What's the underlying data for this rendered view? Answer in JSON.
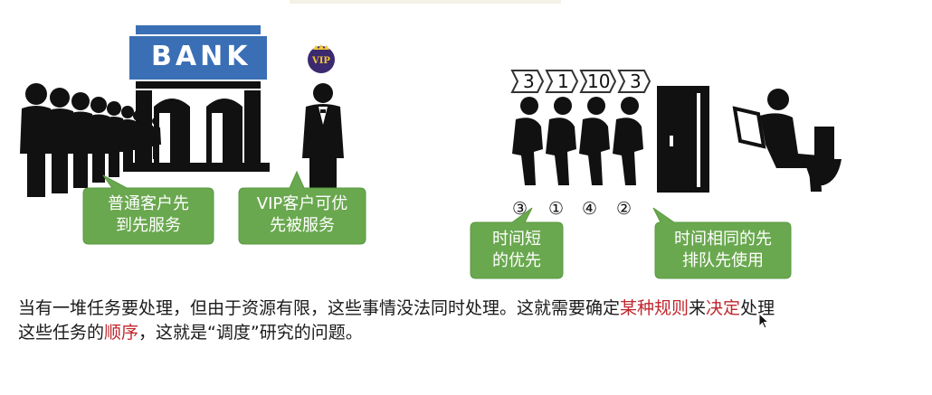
{
  "bank_illustration": {
    "bank_sign": "BANK",
    "vip_badge": "VIP",
    "callout_normal": [
      "普通客户先",
      "到先服务"
    ],
    "callout_vip": [
      "VIP客户可优",
      "先被服务"
    ]
  },
  "toilet_illustration": {
    "tickets": [
      "3",
      "1",
      "10",
      "3"
    ],
    "order_marks": [
      "③",
      "①",
      "④",
      "②"
    ],
    "callout_short": [
      "时间短",
      "的优先"
    ],
    "callout_same": [
      "时间相同的先",
      "排队先使用"
    ]
  },
  "paragraph": {
    "part1": "当有一堆任务要处理，但由于资源有限，这些事情没法同时处理。这就需要确定",
    "highlight1": "某种规则",
    "part2": "来",
    "highlight2": "决定",
    "part3": "处理",
    "part4": "这些任务的",
    "highlight3": "顺序",
    "part5": "，这就是“调度”研究的问题。"
  },
  "colors": {
    "callout_green": "#6aa84f",
    "bank_blue": "#3a6fb5",
    "highlight_red": "#c0262d"
  }
}
